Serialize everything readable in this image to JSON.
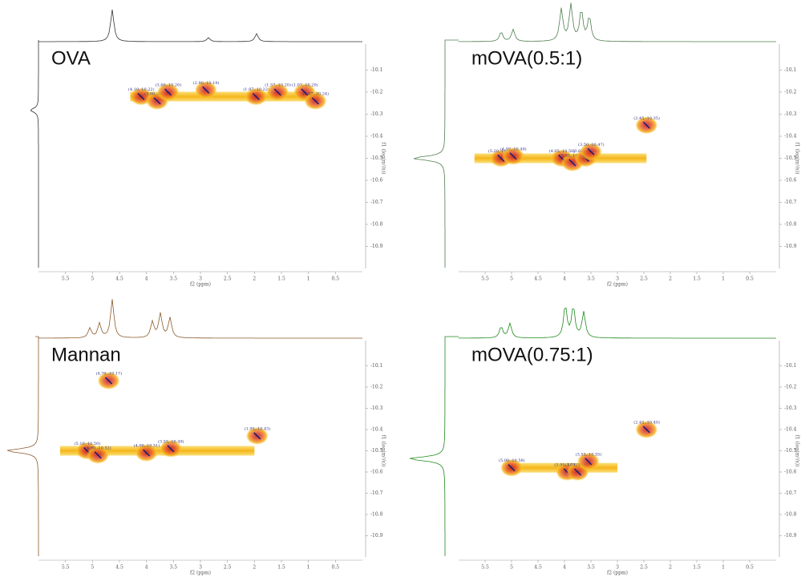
{
  "chart_data": [
    {
      "type": "dosy",
      "title": "OVA",
      "x_label": "f2 (ppm)",
      "y_label": "f1 (log(m²/s))",
      "spectrum_color": "#333333",
      "xlim": [
        6.0,
        0.0
      ],
      "xticks": [
        5.5,
        5.0,
        4.5,
        4.0,
        3.5,
        3.0,
        2.5,
        2.0,
        1.5,
        1.0,
        0.5
      ],
      "ylim": [
        -10.0,
        -11.0
      ],
      "yticks": [
        -10.1,
        -10.2,
        -10.3,
        -10.4,
        -10.5,
        -10.6,
        -10.7,
        -10.8,
        -10.9
      ],
      "band": {
        "x": [
          4.3,
          0.8
        ],
        "y": -10.22
      },
      "x": [
        4.1,
        3.8,
        3.6,
        2.9,
        1.97,
        1.57,
        1.07,
        0.87
      ],
      "values": [
        -10.22,
        -10.24,
        -10.2,
        -10.19,
        -10.22,
        -10.2,
        -10.2,
        -10.24
      ],
      "point_labels": [
        "(4.10,-10.22)",
        "(3.80,-10.24)",
        "(3.60,-10.20)",
        "(2.90,-10.19)",
        "(1.97,-10.22)",
        "(1.57,-10.20)",
        "(1.07,-10.20)",
        "(0.87,-10.24)"
      ]
    },
    {
      "type": "dosy",
      "title": "mOVA(0.5:1)",
      "x_label": "f2 (ppm)",
      "y_label": "f1 (log(m²/s))",
      "spectrum_color": "#4f7d4f",
      "xlim": [
        6.0,
        0.0
      ],
      "xticks": [
        5.5,
        5.0,
        4.5,
        4.0,
        3.5,
        3.0,
        2.5,
        2.0,
        1.5,
        1.0,
        0.5
      ],
      "ylim": [
        -10.0,
        -11.0
      ],
      "yticks": [
        -10.1,
        -10.2,
        -10.3,
        -10.4,
        -10.5,
        -10.6,
        -10.7,
        -10.8,
        -10.9
      ],
      "band": {
        "x": [
          5.7,
          2.45
        ],
        "y": -10.5
      },
      "x": [
        5.2,
        4.97,
        4.05,
        3.85,
        3.6,
        3.5,
        2.45
      ],
      "values": [
        -10.5,
        -10.49,
        -10.5,
        -10.52,
        -10.5,
        -10.47,
        -10.35
      ],
      "point_labels": [
        "(5.20,-10.50)",
        "(4.97,-10.49)",
        "(4.05,-10.50)",
        "(3.85,-10.52)",
        "(3.60,-10.50)",
        "(3.50,-10.47)",
        "(2.45,-10.35)"
      ]
    },
    {
      "type": "dosy",
      "title": "Mannan",
      "x_label": "f2 (ppm)",
      "y_label": "f1 (log(m²/s))",
      "spectrum_color": "#8b5a2b",
      "xlim": [
        6.0,
        0.0
      ],
      "xticks": [
        5.5,
        5.0,
        4.5,
        4.0,
        3.5,
        3.0,
        2.5,
        2.0,
        1.5,
        1.0,
        0.5
      ],
      "ylim": [
        -10.0,
        -11.0
      ],
      "yticks": [
        -10.1,
        -10.2,
        -10.3,
        -10.4,
        -10.5,
        -10.6,
        -10.7,
        -10.8,
        -10.9
      ],
      "band": {
        "x": [
          5.6,
          2.0
        ],
        "y": -10.5
      },
      "x": [
        5.1,
        4.9,
        4.7,
        4.0,
        3.55,
        1.95
      ],
      "values": [
        -10.5,
        -10.52,
        -10.17,
        -10.51,
        -10.49,
        -10.43
      ],
      "point_labels": [
        "(5.10,-10.50)",
        "(4.90,-10.52)",
        "(4.70,-10.17)",
        "(4.00,-10.51)",
        "(3.55,-10.49)",
        "(1.95,-10.43)"
      ]
    },
    {
      "type": "dosy",
      "title": "mOVA(0.75:1)",
      "x_label": "f2 (ppm)",
      "y_label": "f1 (log(m²/s))",
      "spectrum_color": "#1f8a1f",
      "xlim": [
        6.0,
        0.0
      ],
      "xticks": [
        5.5,
        5.0,
        4.5,
        4.0,
        3.5,
        3.0,
        2.5,
        2.0,
        1.5,
        1.0,
        0.5
      ],
      "ylim": [
        -10.0,
        -11.0
      ],
      "yticks": [
        -10.1,
        -10.2,
        -10.3,
        -10.4,
        -10.5,
        -10.6,
        -10.7,
        -10.8,
        -10.9
      ],
      "band": {
        "x": [
          5.1,
          3.0
        ],
        "y": -10.58
      },
      "x": [
        5.0,
        3.95,
        3.75,
        3.55,
        2.45
      ],
      "values": [
        -10.58,
        -10.6,
        -10.6,
        -10.55,
        -10.4
      ],
      "point_labels": [
        "(5.00,-10.58)",
        "(3.95,-10.60)",
        "(3.75,-10.60)",
        "(3.55,-10.55)",
        "(2.45,-10.40)"
      ]
    }
  ]
}
